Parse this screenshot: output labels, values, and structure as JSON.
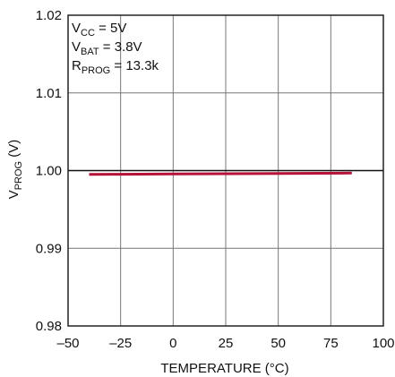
{
  "chart_data": {
    "type": "line",
    "xlabel": "TEMPERATURE (°C)",
    "ylabel": {
      "base": "V",
      "sub": "PROG",
      "suffix": " (V)"
    },
    "xlim": [
      -50,
      100
    ],
    "ylim": [
      0.98,
      1.02
    ],
    "x_ticks": [
      -50,
      -25,
      0,
      25,
      50,
      75,
      100
    ],
    "x_tick_labels": [
      "–50",
      "–25",
      "0",
      "25",
      "50",
      "75",
      "100"
    ],
    "y_ticks": [
      0.98,
      0.99,
      1.0,
      1.01,
      1.02
    ],
    "y_tick_labels": [
      "0.98",
      "0.99",
      "1.00",
      "1.01",
      "1.02"
    ],
    "grid": true,
    "annotations": [
      {
        "base": "V",
        "sub": "CC",
        "rest": " = 5V"
      },
      {
        "base": "V",
        "sub": "BAT",
        "rest": " = 3.8V"
      },
      {
        "base": "R",
        "sub": "PROG",
        "rest": " = 13.3k"
      }
    ],
    "series": [
      {
        "color": "#b5123a",
        "x": [
          -40,
          -25,
          0,
          25,
          50,
          85
        ],
        "y": [
          0.9995,
          0.99953,
          0.99957,
          0.9996,
          0.99963,
          0.99968
        ]
      }
    ]
  }
}
